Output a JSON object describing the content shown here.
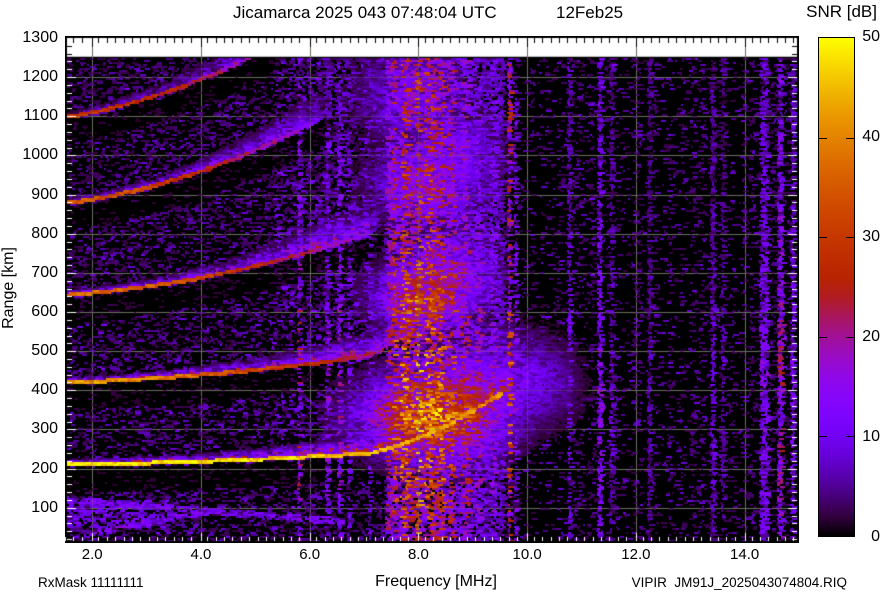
{
  "header": {
    "title": "Jicamarca 2025 043 07:48:04 UTC",
    "date": "12Feb25",
    "colorbar_title": "SNR [dB]"
  },
  "footer": {
    "rx_mask": "RxMask 11111111",
    "xaxis_label": "Frequency [MHz]",
    "filename": "VIPIR  JM91J_2025043074804.RIQ"
  },
  "chart_data": {
    "type": "heatmap",
    "title": "Jicamarca 2025 043 07:48:04 UTC",
    "station": "Jicamarca",
    "date_label": "12Feb25",
    "xlabel": "Frequency [MHz]",
    "ylabel": "Range [km]",
    "xlim": [
      1.5,
      15.0
    ],
    "ylim": [
      10,
      1305
    ],
    "xticks": [
      2,
      4,
      6,
      8,
      10,
      12,
      14
    ],
    "xtick_labels": [
      "2.0",
      "4.0",
      "6.0",
      "8.0",
      "10.0",
      "12.0",
      "14.0"
    ],
    "yticks": [
      100,
      200,
      300,
      400,
      500,
      600,
      700,
      800,
      900,
      1000,
      1100,
      1200,
      1300
    ],
    "x_minor_step": 0.154,
    "y_minor_step": 20,
    "grid": true,
    "grid_color": "#6e6e64",
    "background_color": "#ffffff",
    "frame_color": "#000000",
    "data_top_km": 1252,
    "colorbar": {
      "label": "SNR [dB]",
      "min": 0,
      "max": 50,
      "ticks": [
        0,
        10,
        20,
        30,
        40,
        50
      ],
      "palette": "gnuplot black-violet-red-yellow (rgbformulae 7,5,15)"
    },
    "render_seed": 1337,
    "echo_traces": [
      {
        "name": "F-region echo trace",
        "base": 210,
        "slope": 1.1,
        "fade": 9.45,
        "peak": 48,
        "core_drop": 9,
        "spread_peak": 30,
        "spread_base": 15,
        "spread_grow": 100
      },
      {
        "name": "2nd hop multiple",
        "base": 420,
        "slope": 2.6,
        "fade": 8.05,
        "peak": 41,
        "core_drop": 26,
        "spread_peak": 24,
        "spread_base": 15,
        "spread_grow": 85
      },
      {
        "name": "3rd hop multiple",
        "base": 643,
        "slope": 6.0,
        "fade": 7.0,
        "peak": 37,
        "core_drop": 24,
        "spread_peak": 20,
        "spread_base": 15,
        "spread_grow": 90
      },
      {
        "name": "4th hop multiple",
        "base": 878,
        "slope": 11.0,
        "fade": 6.05,
        "peak": 34,
        "core_drop": 22,
        "spread_peak": 16,
        "spread_base": 15,
        "spread_grow": 80
      },
      {
        "name": "5th hop multiple",
        "base": 1098,
        "slope": 13.0,
        "fade": 5.05,
        "peak": 30,
        "core_drop": 14,
        "spread_peak": 14,
        "spread_base": 15,
        "spread_grow": 70
      }
    ],
    "spread_blobs": [
      {
        "f": 8.25,
        "r": 335,
        "sf": 0.85,
        "sr": 70,
        "v": 36
      },
      {
        "f": 8.9,
        "r": 385,
        "sf": 0.6,
        "sr": 70,
        "v": 20
      },
      {
        "f": 9.6,
        "r": 420,
        "sf": 0.7,
        "sr": 80,
        "v": 12
      },
      {
        "f": 10.2,
        "r": 420,
        "sf": 0.45,
        "sr": 70,
        "v": 8
      },
      {
        "f": 8.05,
        "r": 640,
        "sf": 0.55,
        "sr": 55,
        "v": 26
      },
      {
        "f": 8.55,
        "r": 700,
        "sf": 0.5,
        "sr": 60,
        "v": 18
      },
      {
        "f": 8.1,
        "r": 930,
        "sf": 0.6,
        "sr": 70,
        "v": 16
      },
      {
        "f": 8.6,
        "r": 1000,
        "sf": 0.5,
        "sr": 70,
        "v": 12
      },
      {
        "f": 7.8,
        "r": 1150,
        "sf": 0.6,
        "sr": 80,
        "v": 10
      }
    ],
    "rfi_bands": [
      {
        "f0": 7.38,
        "f1": 7.5,
        "v": 16
      },
      {
        "f0": 7.5,
        "f1": 7.58,
        "v": 22
      },
      {
        "f0": 7.58,
        "f1": 7.66,
        "v": 12
      },
      {
        "f0": 7.66,
        "f1": 7.8,
        "v": 26
      },
      {
        "f0": 7.8,
        "f1": 7.92,
        "v": 18
      },
      {
        "f0": 7.92,
        "f1": 8.02,
        "v": 28
      },
      {
        "f0": 8.02,
        "f1": 8.1,
        "v": 14
      },
      {
        "f0": 8.1,
        "f1": 8.24,
        "v": 26
      },
      {
        "f0": 8.24,
        "f1": 8.34,
        "v": 20
      },
      {
        "f0": 8.34,
        "f1": 8.44,
        "v": 24
      },
      {
        "f0": 8.44,
        "f1": 8.52,
        "v": 12
      },
      {
        "f0": 8.52,
        "f1": 8.64,
        "v": 20
      },
      {
        "f0": 8.64,
        "f1": 8.76,
        "v": 10
      },
      {
        "f0": 8.76,
        "f1": 8.9,
        "v": 16
      },
      {
        "f0": 8.9,
        "f1": 9.02,
        "v": 9
      },
      {
        "f0": 9.02,
        "f1": 9.14,
        "v": 13
      },
      {
        "f0": 9.14,
        "f1": 9.28,
        "v": 8
      },
      {
        "f0": 9.28,
        "f1": 9.42,
        "v": 11
      },
      {
        "f0": 9.42,
        "f1": 9.55,
        "v": 7
      },
      {
        "f0": 5.76,
        "f1": 5.8,
        "v": 14
      },
      {
        "f0": 6.28,
        "f1": 6.32,
        "v": 10
      },
      {
        "f0": 6.5,
        "f1": 6.54,
        "v": 12
      },
      {
        "f0": 6.68,
        "f1": 6.72,
        "v": 9
      },
      {
        "f0": 7.06,
        "f1": 7.1,
        "v": 8
      },
      {
        "f0": 9.62,
        "f1": 9.68,
        "v": 22
      },
      {
        "f0": 9.74,
        "f1": 9.78,
        "v": 10
      },
      {
        "f0": 10.72,
        "f1": 10.78,
        "v": 7
      },
      {
        "f0": 11.28,
        "f1": 11.34,
        "v": 10
      },
      {
        "f0": 11.5,
        "f1": 11.55,
        "v": 6
      },
      {
        "f0": 12.2,
        "f1": 12.25,
        "v": 5
      },
      {
        "f0": 13.35,
        "f1": 13.42,
        "v": 6
      },
      {
        "f0": 13.55,
        "f1": 13.6,
        "v": 5
      },
      {
        "f0": 14.25,
        "f1": 14.4,
        "v": 9
      },
      {
        "f0": 14.58,
        "f1": 14.68,
        "v": 13
      },
      {
        "f0": 14.82,
        "f1": 14.9,
        "v": 8
      }
    ],
    "low_bands": [
      {
        "f0": 1.5,
        "f1": 6.6,
        "r0": 120,
        "dr": -11,
        "hw": 9,
        "v": 11
      },
      {
        "f0": 1.8,
        "f1": 4.4,
        "r0": 30,
        "dr": 26,
        "hw": 8,
        "v": 13
      }
    ],
    "noise": {
      "left_density": 0.3,
      "mid_density": 0.34,
      "right_density": 0.13,
      "bl_cluster": {
        "fmax": 3.4,
        "r0": 50,
        "r1": 118
      }
    }
  }
}
